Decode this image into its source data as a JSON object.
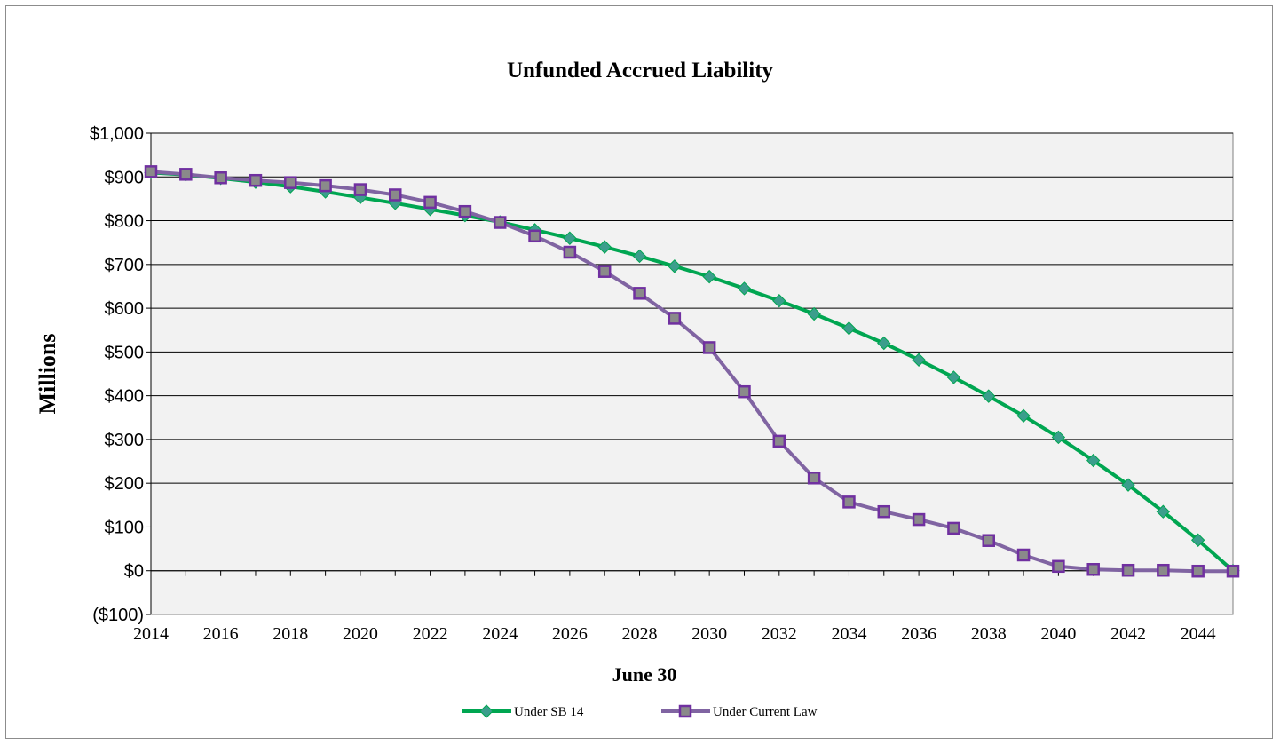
{
  "chart_data": {
    "type": "line",
    "title": "Unfunded Accrued Liability",
    "xlabel": "June 30",
    "ylabel": "Millions",
    "xlim": [
      2014,
      2045
    ],
    "ylim": [
      -100,
      1000
    ],
    "y_ticks": [
      -100,
      0,
      100,
      200,
      300,
      400,
      500,
      600,
      700,
      800,
      900,
      1000
    ],
    "y_tick_labels": [
      "($100)",
      "$0",
      "$100",
      "$200",
      "$300",
      "$400",
      "$500",
      "$600",
      "$700",
      "$800",
      "$900",
      "$1,000"
    ],
    "x_tick_labels": [
      "2014",
      "2016",
      "2018",
      "2020",
      "2022",
      "2024",
      "2026",
      "2028",
      "2030",
      "2032",
      "2034",
      "2036",
      "2038",
      "2040",
      "2042",
      "2044"
    ],
    "grid": "horizontal",
    "legend_position": "bottom",
    "x": [
      2014,
      2015,
      2016,
      2017,
      2018,
      2019,
      2020,
      2021,
      2022,
      2023,
      2024,
      2025,
      2026,
      2027,
      2028,
      2029,
      2030,
      2031,
      2032,
      2033,
      2034,
      2035,
      2036,
      2037,
      2038,
      2039,
      2040,
      2041,
      2042,
      2043,
      2044,
      2045
    ],
    "series": [
      {
        "name": "Under SB 14",
        "color": "#00a651",
        "marker_color": "#3b9e8c",
        "marker": "diamond",
        "values": [
          910,
          905,
          897,
          888,
          878,
          866,
          853,
          840,
          826,
          812,
          797,
          779,
          760,
          740,
          719,
          696,
          672,
          645,
          617,
          587,
          554,
          520,
          482,
          442,
          399,
          354,
          305,
          252,
          196,
          135,
          70,
          0
        ]
      },
      {
        "name": "Under Current Law",
        "color": "#8064a2",
        "marker_color": "#7030a0",
        "marker": "square",
        "values": [
          912,
          906,
          898,
          892,
          887,
          880,
          871,
          859,
          842,
          821,
          796,
          765,
          728,
          684,
          634,
          577,
          510,
          409,
          296,
          212,
          157,
          135,
          117,
          97,
          69,
          36,
          10,
          3,
          1,
          1,
          -1,
          -1
        ]
      }
    ]
  }
}
